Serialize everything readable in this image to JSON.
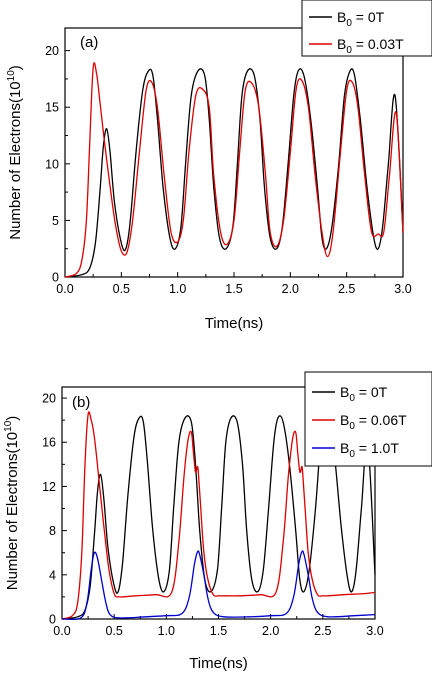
{
  "chart_data": [
    {
      "type": "line",
      "panel_label": "(a)",
      "xlabel": "Time(ns)",
      "ylabel": "Number of Electrons(10",
      "ylabel_exp": "10",
      "ylabel_close": ")",
      "xlim": [
        0.0,
        3.0
      ],
      "ylim": [
        0,
        22
      ],
      "xticks": [
        "0.0",
        "0.5",
        "1.0",
        "1.5",
        "2.0",
        "2.5",
        "3.0"
      ],
      "yticks": [
        "0",
        "5",
        "10",
        "15",
        "20"
      ],
      "xtick_values": [
        0,
        0.5,
        1.0,
        1.5,
        2.0,
        2.5,
        3.0
      ],
      "ytick_values": [
        0,
        5,
        10,
        15,
        20
      ],
      "legend_position": "top-right",
      "series": [
        {
          "legend_prefix": "B",
          "legend_sub": "0",
          "legend_suffix": " = 0T",
          "color": "#000000",
          "x": [
            0.0,
            0.15,
            0.22,
            0.27,
            0.31,
            0.34,
            0.37,
            0.4,
            0.44,
            0.5,
            0.54,
            0.58,
            0.63,
            0.69,
            0.74,
            0.78,
            0.82,
            0.87,
            0.93,
            0.98,
            1.03,
            1.07,
            1.12,
            1.18,
            1.24,
            1.28,
            1.32,
            1.37,
            1.43,
            1.49,
            1.53,
            1.57,
            1.62,
            1.68,
            1.73,
            1.77,
            1.82,
            1.88,
            1.93,
            1.98,
            2.03,
            2.07,
            2.12,
            2.18,
            2.24,
            2.28,
            2.32,
            2.37,
            2.43,
            2.48,
            2.53,
            2.57,
            2.62,
            2.68,
            2.74,
            2.78,
            2.82,
            2.87,
            2.93,
            3.0
          ],
          "y": [
            0,
            0.2,
            0.8,
            3.0,
            7.5,
            11.5,
            13.1,
            11.0,
            6.5,
            3.0,
            2.5,
            5.0,
            11.0,
            16.5,
            18.2,
            17.8,
            14.0,
            8.0,
            3.5,
            2.5,
            4.5,
            10.0,
            16.0,
            18.2,
            17.8,
            14.0,
            8.0,
            3.5,
            2.5,
            4.5,
            10.0,
            16.0,
            18.2,
            17.8,
            14.0,
            8.0,
            3.5,
            2.5,
            4.5,
            10.0,
            16.0,
            18.2,
            17.8,
            14.0,
            8.0,
            3.5,
            2.5,
            4.5,
            10.0,
            16.0,
            18.2,
            17.8,
            14.0,
            8.0,
            3.5,
            2.5,
            4.5,
            10.0,
            16.0,
            4.0
          ]
        },
        {
          "legend_prefix": "B",
          "legend_sub": "0",
          "legend_suffix": " = 0.03T",
          "color": "#dd0000",
          "x": [
            0.0,
            0.1,
            0.15,
            0.19,
            0.22,
            0.25,
            0.28,
            0.31,
            0.35,
            0.4,
            0.45,
            0.5,
            0.55,
            0.6,
            0.66,
            0.72,
            0.77,
            0.82,
            0.88,
            0.94,
            1.0,
            1.05,
            1.1,
            1.16,
            1.22,
            1.28,
            1.32,
            1.38,
            1.44,
            1.5,
            1.55,
            1.6,
            1.66,
            1.72,
            1.78,
            1.82,
            1.88,
            1.94,
            2.0,
            2.05,
            2.1,
            2.16,
            2.22,
            2.28,
            2.33,
            2.38,
            2.44,
            2.5,
            2.55,
            2.6,
            2.66,
            2.72,
            2.78,
            2.83,
            2.88,
            2.94,
            3.0
          ],
          "y": [
            0,
            0.3,
            1.5,
            5.0,
            12.0,
            18.5,
            18.0,
            15.5,
            12.0,
            8.0,
            4.5,
            2.3,
            2.2,
            5.0,
            11.0,
            16.5,
            17.2,
            15.0,
            9.0,
            4.0,
            3.1,
            5.0,
            11.0,
            16.0,
            16.6,
            15.0,
            9.0,
            4.0,
            2.9,
            5.0,
            11.0,
            16.5,
            17.1,
            15.0,
            9.0,
            4.0,
            2.7,
            5.0,
            11.0,
            16.5,
            17.4,
            15.0,
            9.0,
            4.0,
            1.8,
            4.0,
            10.5,
            16.5,
            17.2,
            15.0,
            9.0,
            4.0,
            3.8,
            4.0,
            9.0,
            14.5,
            3.9
          ]
        }
      ]
    },
    {
      "type": "line",
      "panel_label": "(b)",
      "xlabel": "Time(ns)",
      "ylabel": "Number of Electrons(10",
      "ylabel_exp": "10",
      "ylabel_close": ")",
      "xlim": [
        0.0,
        3.0
      ],
      "ylim": [
        0,
        21
      ],
      "xticks": [
        "0.0",
        "0.5",
        "1.0",
        "1.5",
        "2.0",
        "2.5",
        "3.0"
      ],
      "yticks": [
        "0",
        "4",
        "8",
        "12",
        "16",
        "20"
      ],
      "xtick_values": [
        0,
        0.5,
        1.0,
        1.5,
        2.0,
        2.5,
        3.0
      ],
      "ytick_values": [
        0,
        4,
        8,
        12,
        16,
        20
      ],
      "legend_position": "top-right",
      "series": [
        {
          "legend_prefix": "B",
          "legend_sub": "0",
          "legend_suffix": " = 0T",
          "color": "#000000",
          "x": [
            0.0,
            0.15,
            0.22,
            0.27,
            0.31,
            0.34,
            0.37,
            0.4,
            0.44,
            0.5,
            0.54,
            0.58,
            0.63,
            0.69,
            0.74,
            0.78,
            0.82,
            0.87,
            0.93,
            0.98,
            1.03,
            1.07,
            1.12,
            1.18,
            1.24,
            1.28,
            1.32,
            1.37,
            1.43,
            1.49,
            1.53,
            1.57,
            1.62,
            1.68,
            1.73,
            1.77,
            1.82,
            1.88,
            1.93,
            1.98,
            2.03,
            2.07,
            2.12,
            2.18,
            2.24,
            2.28,
            2.32,
            2.37,
            2.43,
            2.48,
            2.53,
            2.57,
            2.62,
            2.68,
            2.74,
            2.78,
            2.82,
            2.87,
            2.93,
            3.0
          ],
          "y": [
            0,
            0.2,
            0.8,
            3.0,
            7.5,
            11.5,
            13.1,
            11.0,
            6.5,
            3.0,
            2.5,
            5.0,
            11.0,
            16.5,
            18.2,
            17.8,
            14.0,
            8.0,
            3.5,
            2.5,
            4.5,
            10.0,
            16.0,
            18.2,
            17.8,
            14.0,
            8.0,
            3.5,
            2.5,
            4.5,
            10.0,
            16.0,
            18.2,
            17.8,
            14.0,
            8.0,
            3.5,
            2.5,
            4.5,
            10.0,
            16.0,
            18.2,
            17.8,
            14.0,
            8.0,
            3.5,
            2.5,
            4.5,
            10.0,
            16.0,
            18.2,
            17.8,
            14.0,
            8.0,
            3.5,
            2.5,
            4.5,
            10.0,
            16.0,
            4.0
          ]
        },
        {
          "legend_prefix": "B",
          "legend_sub": "0",
          "legend_suffix": " = 0.06T",
          "color": "#dd0000",
          "x": [
            0.0,
            0.1,
            0.15,
            0.19,
            0.22,
            0.25,
            0.28,
            0.31,
            0.35,
            0.4,
            0.45,
            0.5,
            0.55,
            0.7,
            0.9,
            1.05,
            1.12,
            1.17,
            1.21,
            1.24,
            1.26,
            1.28,
            1.3,
            1.31,
            1.33,
            1.36,
            1.4,
            1.45,
            1.5,
            1.55,
            1.7,
            1.9,
            2.05,
            2.12,
            2.17,
            2.21,
            2.24,
            2.26,
            2.28,
            2.3,
            2.31,
            2.33,
            2.36,
            2.4,
            2.45,
            2.5,
            2.55,
            2.7,
            2.9,
            3.0
          ],
          "y": [
            0,
            0.3,
            1.5,
            6.0,
            14.0,
            18.5,
            18.0,
            16.5,
            13.0,
            8.5,
            4.5,
            2.3,
            2.0,
            2.1,
            2.2,
            2.4,
            7.0,
            13.0,
            16.3,
            16.9,
            15.0,
            13.3,
            13.8,
            12.8,
            10.0,
            6.0,
            3.5,
            2.2,
            2.1,
            2.1,
            2.1,
            2.2,
            2.4,
            7.0,
            13.0,
            16.3,
            16.9,
            15.0,
            13.3,
            13.8,
            12.8,
            10.0,
            6.0,
            3.5,
            2.2,
            2.1,
            2.1,
            2.2,
            2.3,
            2.4
          ]
        },
        {
          "legend_prefix": "B",
          "legend_sub": "0",
          "legend_suffix": " = 1.0T",
          "color": "#0000cc",
          "x": [
            0.0,
            0.18,
            0.24,
            0.28,
            0.31,
            0.34,
            0.38,
            0.42,
            0.46,
            0.55,
            0.8,
            1.0,
            1.15,
            1.22,
            1.27,
            1.3,
            1.32,
            1.36,
            1.4,
            1.45,
            1.55,
            1.8,
            2.0,
            2.15,
            2.22,
            2.27,
            2.3,
            2.32,
            2.36,
            2.4,
            2.45,
            2.55,
            2.8,
            3.0
          ],
          "y": [
            0,
            0.1,
            1.5,
            4.5,
            6.0,
            5.5,
            3.5,
            1.5,
            0.4,
            0.1,
            0.2,
            0.3,
            0.5,
            2.0,
            5.0,
            6.1,
            5.8,
            4.0,
            1.8,
            0.6,
            0.2,
            0.2,
            0.3,
            0.5,
            2.0,
            5.0,
            6.1,
            5.8,
            4.0,
            1.8,
            0.6,
            0.2,
            0.3,
            0.4
          ]
        }
      ]
    }
  ]
}
